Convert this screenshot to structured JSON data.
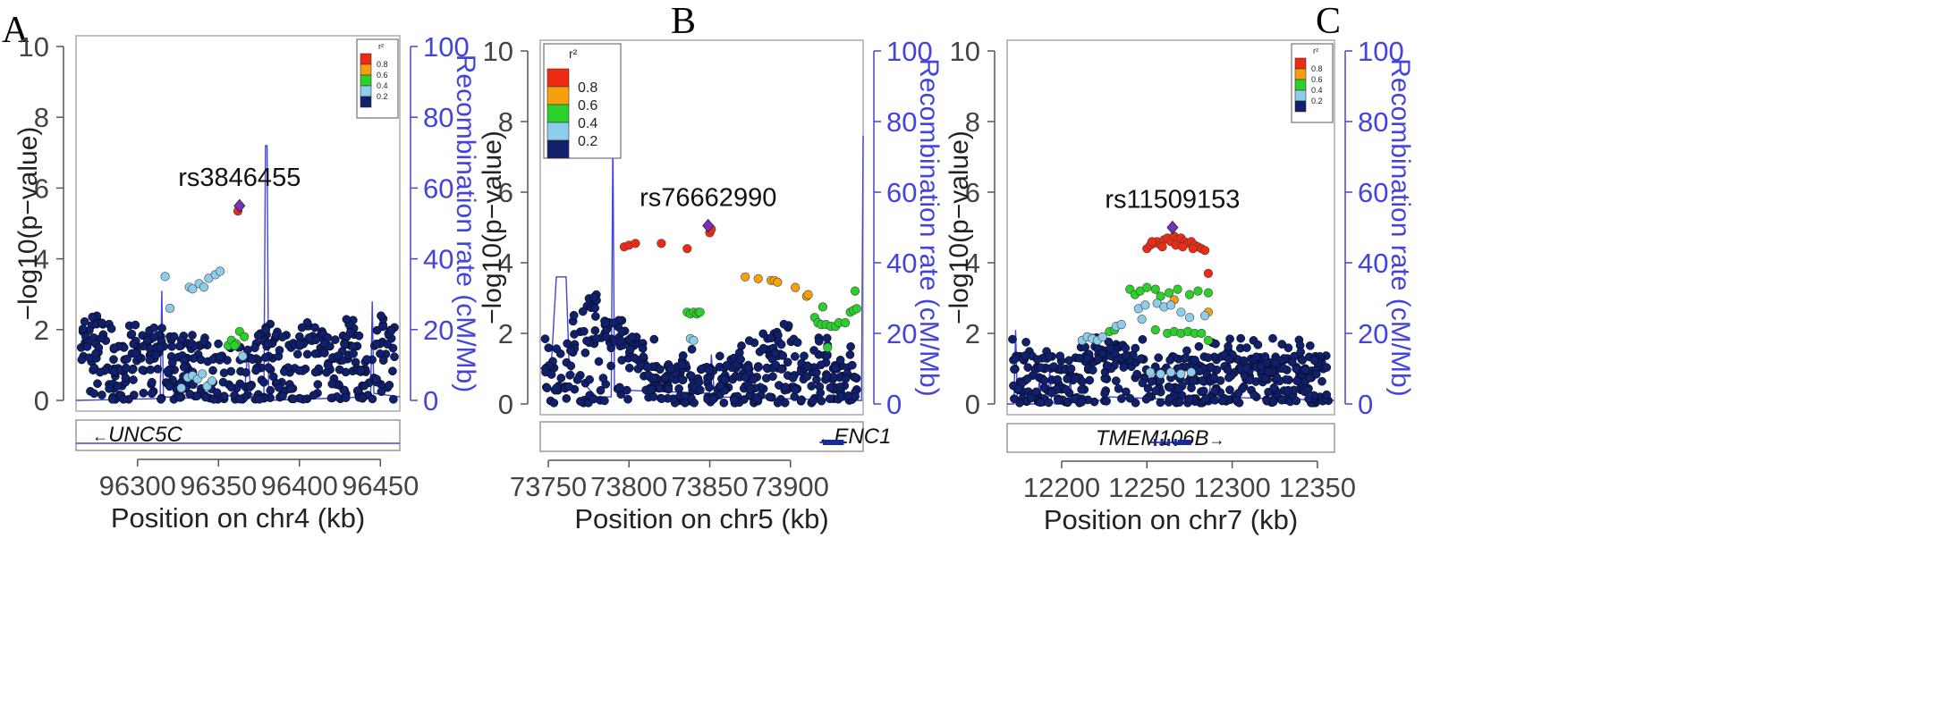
{
  "colors": {
    "axis": "#555555",
    "recomb": "#4444dd",
    "lead": "#7b2fbf",
    "r2": [
      "#11206b",
      "#8ecde9",
      "#2bd12b",
      "#f5a00c",
      "#ee2a12"
    ]
  },
  "chart_data": [
    {
      "type": "scatter",
      "panel_label": "A",
      "xlabel": "Position on chr4 (kb)",
      "ylabel_left": "−log10(p−value)",
      "ylabel_right": "Recombination rate (cM/Mb)",
      "xlim": [
        96262,
        96462
      ],
      "ylim": [
        0,
        10
      ],
      "ylim_right": [
        0,
        100
      ],
      "x_ticks": [
        96300,
        96350,
        96400,
        96450
      ],
      "y_ticks": [
        0,
        2,
        4,
        6,
        8,
        10
      ],
      "y2_ticks": [
        0,
        20,
        40,
        60,
        80,
        100
      ],
      "legend_title": "r²",
      "legend_labels": [
        "0.8",
        "0.6",
        "0.4",
        "0.2"
      ],
      "legend_size": "small",
      "lead_snp": {
        "name": "rs3846455",
        "x": 96363,
        "y": 5.5
      },
      "gene": {
        "name": "UNC5C",
        "direction": "left",
        "text_pos": 0.05
      },
      "points": [
        [
          96362,
          5.35,
          4
        ],
        [
          96317,
          3.5,
          1
        ],
        [
          96332,
          3.2,
          1
        ],
        [
          96334,
          3.15,
          1
        ],
        [
          96338,
          3.3,
          1
        ],
        [
          96341,
          3.2,
          1
        ],
        [
          96344,
          3.45,
          1
        ],
        [
          96348,
          3.55,
          1
        ],
        [
          96351,
          3.65,
          1
        ],
        [
          96320,
          2.6,
          1
        ],
        [
          96356,
          1.55,
          2
        ],
        [
          96358,
          1.7,
          2
        ],
        [
          96361,
          1.6,
          2
        ],
        [
          96360,
          1.55,
          2
        ],
        [
          96363,
          1.95,
          2
        ],
        [
          96366,
          1.8,
          2
        ],
        [
          96327,
          0.35,
          1
        ],
        [
          96331,
          0.65,
          1
        ],
        [
          96334,
          0.7,
          1
        ],
        [
          96337,
          0.6,
          1
        ],
        [
          96340,
          0.75,
          1
        ],
        [
          96343,
          0.4,
          1
        ],
        [
          96346,
          0.55,
          1
        ],
        [
          96365,
          1.25,
          1
        ]
      ],
      "background": {
        "seed": 11,
        "count": 470,
        "bands": [
          0.1,
          0.45,
          0.85,
          1.2,
          1.55
        ],
        "peaks": [
          [
            96268,
            2.3
          ],
          [
            96278,
            2.4
          ],
          [
            96300,
            2.2
          ],
          [
            96310,
            2.3
          ],
          [
            96384,
            2.2
          ],
          [
            96404,
            2.3
          ],
          [
            96410,
            2.2
          ],
          [
            96432,
            2.3
          ],
          [
            96450,
            2.2
          ],
          [
            96456,
            2.4
          ]
        ]
      },
      "recomb": [
        [
          96262,
          0
        ],
        [
          96314,
          0.5
        ],
        [
          96315,
          31
        ],
        [
          96316,
          1
        ],
        [
          96338,
          0.5
        ],
        [
          96340,
          1
        ],
        [
          96366,
          1.5
        ],
        [
          96368,
          14
        ],
        [
          96370,
          2
        ],
        [
          96378,
          0
        ],
        [
          96379,
          72
        ],
        [
          96380,
          72
        ],
        [
          96381,
          0
        ],
        [
          96444,
          1
        ],
        [
          96445,
          28
        ],
        [
          96446,
          2
        ],
        [
          96462,
          1
        ]
      ]
    },
    {
      "type": "scatter",
      "panel_label": "B",
      "xlabel": "Position on chr5 (kb)",
      "ylabel_left": "−log10(p−value)",
      "ylabel_right": "Recombination rate (cM/Mb)",
      "xlim": [
        73745,
        73945
      ],
      "ylim": [
        0,
        10
      ],
      "ylim_right": [
        0,
        100
      ],
      "x_ticks": [
        73750,
        73800,
        73850,
        73900
      ],
      "y_ticks": [
        0,
        2,
        4,
        6,
        8,
        10
      ],
      "y2_ticks": [
        0,
        20,
        40,
        60,
        80,
        100
      ],
      "legend_title": "r²",
      "legend_labels": [
        "0.8",
        "0.6",
        "0.4",
        "0.2"
      ],
      "legend_size": "large",
      "lead_snp": {
        "name": "rs76662990",
        "x": 73849,
        "y": 5.05
      },
      "gene": {
        "name": "ENC1",
        "direction": "left",
        "text_pos": 0.86
      },
      "points": [
        [
          73850,
          4.85,
          4
        ],
        [
          73851,
          4.95,
          4
        ],
        [
          73797,
          4.45,
          4
        ],
        [
          73800,
          4.5,
          4
        ],
        [
          73804,
          4.55,
          4
        ],
        [
          73820,
          4.55,
          4
        ],
        [
          73836,
          4.4,
          4
        ],
        [
          73872,
          3.6,
          3
        ],
        [
          73880,
          3.55,
          3
        ],
        [
          73888,
          3.5,
          3
        ],
        [
          73890,
          3.5,
          3
        ],
        [
          73892,
          3.45,
          3
        ],
        [
          73903,
          3.3,
          3
        ],
        [
          73910,
          3.05,
          3
        ],
        [
          73911,
          3.1,
          3
        ],
        [
          73836,
          2.6,
          2
        ],
        [
          73838,
          2.55,
          2
        ],
        [
          73840,
          2.6,
          2
        ],
        [
          73842,
          2.55,
          2
        ],
        [
          73843,
          2.6,
          2
        ],
        [
          73844,
          2.6,
          2
        ],
        [
          73915,
          2.45,
          2
        ],
        [
          73917,
          2.3,
          2
        ],
        [
          73919,
          2.25,
          2
        ],
        [
          73922,
          2.25,
          2
        ],
        [
          73925,
          2.2,
          2
        ],
        [
          73928,
          2.2,
          2
        ],
        [
          73930,
          2.3,
          2
        ],
        [
          73934,
          2.3,
          2
        ],
        [
          73937,
          2.6,
          2
        ],
        [
          73939,
          2.65,
          2
        ],
        [
          73941,
          2.7,
          2
        ],
        [
          73940,
          3.2,
          2
        ],
        [
          73920,
          2.75,
          2
        ],
        [
          73923,
          1.6,
          2
        ],
        [
          73838,
          1.85,
          1
        ],
        [
          73840,
          1.8,
          1
        ]
      ],
      "background": {
        "seed": 23,
        "count": 430,
        "bands": [
          0.15,
          0.45,
          0.75,
          1.05
        ],
        "peaks": [
          [
            73769,
            2.6
          ],
          [
            73776,
            2.9
          ],
          [
            73781,
            3.1
          ],
          [
            73790,
            2.4
          ],
          [
            73795,
            2.3
          ],
          [
            73800,
            2.1
          ],
          [
            73805,
            1.9
          ],
          [
            73888,
            2.2
          ],
          [
            73895,
            2.3
          ],
          [
            73918,
            2.0
          ]
        ]
      },
      "recomb": [
        [
          73745,
          10
        ],
        [
          73752,
          12
        ],
        [
          73755,
          36
        ],
        [
          73761,
          36
        ],
        [
          73763,
          10
        ],
        [
          73780,
          2
        ],
        [
          73789,
          2
        ],
        [
          73790,
          76
        ],
        [
          73791,
          4
        ],
        [
          73850,
          3
        ],
        [
          73851,
          14
        ],
        [
          73853,
          2
        ],
        [
          73944,
          1
        ],
        [
          73945,
          76
        ]
      ]
    },
    {
      "type": "scatter",
      "panel_label": "C",
      "xlabel": "Position on chr7 (kb)",
      "ylabel_left": "−log10(p−value)",
      "ylabel_right": "Recombination rate (cM/Mb)",
      "xlim": [
        12168,
        12360
      ],
      "ylim": [
        0,
        10
      ],
      "ylim_right": [
        0,
        100
      ],
      "x_ticks": [
        12200,
        12250,
        12300,
        12350
      ],
      "y_ticks": [
        0,
        2,
        4,
        6,
        8,
        10
      ],
      "y2_ticks": [
        0,
        20,
        40,
        60,
        80,
        100
      ],
      "legend_title": "r²",
      "legend_labels": [
        "0.8",
        "0.6",
        "0.4",
        "0.2"
      ],
      "legend_size": "small",
      "lead_snp": {
        "name": "rs11509153",
        "x": 12265,
        "y": 5.0
      },
      "gene": {
        "name": "TMEM106B",
        "direction": "right",
        "text_pos": 0.27
      },
      "points": [
        [
          12250,
          4.4,
          4
        ],
        [
          12252,
          4.5,
          4
        ],
        [
          12254,
          4.55,
          4
        ],
        [
          12256,
          4.6,
          4
        ],
        [
          12258,
          4.5,
          4
        ],
        [
          12260,
          4.65,
          4
        ],
        [
          12262,
          4.7,
          4
        ],
        [
          12264,
          4.6,
          4
        ],
        [
          12266,
          4.75,
          4
        ],
        [
          12268,
          4.65,
          4
        ],
        [
          12270,
          4.7,
          4
        ],
        [
          12272,
          4.6,
          4
        ],
        [
          12274,
          4.55,
          4
        ],
        [
          12276,
          4.6,
          4
        ],
        [
          12278,
          4.5,
          4
        ],
        [
          12280,
          4.45,
          4
        ],
        [
          12282,
          4.4,
          4
        ],
        [
          12284,
          4.35,
          4
        ],
        [
          12286,
          3.7,
          4
        ],
        [
          12253,
          4.6,
          4
        ],
        [
          12259,
          4.45,
          4
        ],
        [
          12267,
          4.5,
          4
        ],
        [
          12271,
          4.45,
          4
        ],
        [
          12277,
          4.4,
          4
        ],
        [
          12266,
          2.95,
          3
        ],
        [
          12286,
          2.6,
          3
        ],
        [
          12240,
          3.25,
          2
        ],
        [
          12243,
          3.1,
          2
        ],
        [
          12246,
          3.2,
          2
        ],
        [
          12250,
          3.3,
          2
        ],
        [
          12255,
          3.25,
          2
        ],
        [
          12258,
          3.05,
          2
        ],
        [
          12263,
          3.15,
          2
        ],
        [
          12268,
          3.25,
          2
        ],
        [
          12275,
          3.1,
          2
        ],
        [
          12280,
          3.2,
          2
        ],
        [
          12286,
          3.15,
          2
        ],
        [
          12255,
          2.1,
          2
        ],
        [
          12262,
          2.0,
          2
        ],
        [
          12266,
          2.05,
          2
        ],
        [
          12270,
          2.0,
          2
        ],
        [
          12274,
          2.05,
          2
        ],
        [
          12278,
          2.0,
          2
        ],
        [
          12282,
          2.0,
          2
        ],
        [
          12286,
          1.8,
          2
        ],
        [
          12228,
          2.05,
          2
        ],
        [
          12231,
          2.1,
          2
        ],
        [
          12212,
          1.8,
          1
        ],
        [
          12215,
          1.9,
          1
        ],
        [
          12218,
          1.85,
          1
        ],
        [
          12221,
          1.8,
          1
        ],
        [
          12224,
          1.9,
          1
        ],
        [
          12232,
          2.2,
          1
        ],
        [
          12235,
          2.25,
          1
        ],
        [
          12245,
          2.7,
          1
        ],
        [
          12249,
          2.8,
          1
        ],
        [
          12256,
          2.85,
          1
        ],
        [
          12260,
          2.75,
          1
        ],
        [
          12264,
          2.8,
          1
        ],
        [
          12270,
          2.6,
          1
        ],
        [
          12275,
          2.45,
          1
        ],
        [
          12284,
          2.5,
          1
        ],
        [
          12247,
          2.4,
          1
        ],
        [
          12252,
          0.9,
          1
        ],
        [
          12258,
          0.85,
          1
        ],
        [
          12264,
          0.9,
          1
        ],
        [
          12270,
          0.85,
          1
        ],
        [
          12276,
          0.9,
          1
        ]
      ],
      "background": {
        "seed": 37,
        "count": 520,
        "bands": [
          0.1,
          0.4,
          0.7,
          1.0,
          1.3
        ],
        "peaks": [
          [
            12218,
            1.5
          ],
          [
            12226,
            1.6
          ],
          [
            12234,
            1.7
          ],
          [
            12242,
            1.4
          ],
          [
            12300,
            1.4
          ],
          [
            12310,
            1.3
          ],
          [
            12320,
            1.2
          ]
        ]
      },
      "recomb": [
        [
          12168,
          0
        ],
        [
          12172,
          0
        ],
        [
          12173,
          21
        ],
        [
          12174,
          2
        ],
        [
          12176,
          0
        ],
        [
          12186,
          0
        ],
        [
          12187,
          8
        ],
        [
          12188,
          0
        ],
        [
          12192,
          0
        ],
        [
          12193,
          10
        ],
        [
          12194,
          1
        ],
        [
          12196,
          0
        ],
        [
          12204,
          0
        ],
        [
          12205,
          8
        ],
        [
          12206,
          1
        ],
        [
          12226,
          1
        ],
        [
          12228,
          2
        ],
        [
          12282,
          1
        ],
        [
          12286,
          1
        ],
        [
          12288,
          8
        ],
        [
          12290,
          2
        ],
        [
          12360,
          1
        ]
      ]
    }
  ]
}
